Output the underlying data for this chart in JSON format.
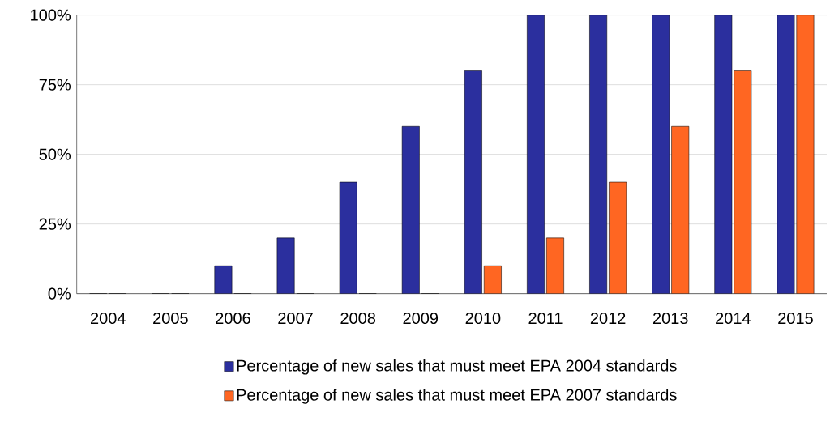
{
  "chart_data": {
    "type": "bar",
    "categories": [
      "2004",
      "2005",
      "2006",
      "2007",
      "2008",
      "2009",
      "2010",
      "2011",
      "2012",
      "2013",
      "2014",
      "2015"
    ],
    "series": [
      {
        "name": "Percentage of new sales that must meet EPA 2004 standards",
        "color": "#2b2f9e",
        "values": [
          0,
          0,
          10,
          20,
          40,
          60,
          80,
          100,
          100,
          100,
          100,
          100
        ]
      },
      {
        "name": "Percentage of new sales that must meet EPA 2007 standards",
        "color": "#ff6622",
        "values": [
          0,
          0,
          0,
          0,
          0,
          0,
          10,
          20,
          40,
          60,
          80,
          100
        ]
      }
    ],
    "ylim": [
      0,
      100
    ],
    "yticks": [
      {
        "value": 0,
        "label": "0%"
      },
      {
        "value": 25,
        "label": "25%"
      },
      {
        "value": 50,
        "label": "50%"
      },
      {
        "value": 75,
        "label": "75%"
      },
      {
        "value": 100,
        "label": "100%"
      }
    ],
    "grid": "y",
    "legend": "bottom"
  }
}
